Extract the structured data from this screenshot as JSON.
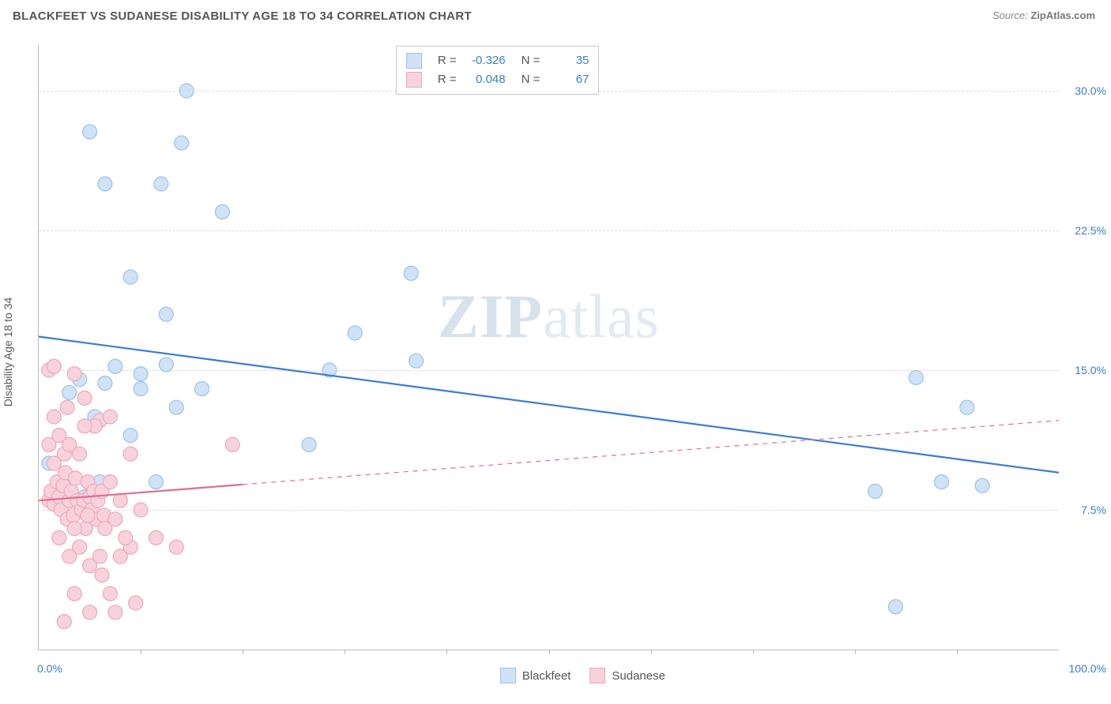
{
  "title": "BLACKFEET VS SUDANESE DISABILITY AGE 18 TO 34 CORRELATION CHART",
  "source_label": "Source:",
  "source_name": "ZipAtlas.com",
  "ylabel": "Disability Age 18 to 34",
  "watermark_strong": "ZIP",
  "watermark_light": "atlas",
  "chart": {
    "type": "scatter",
    "background_color": "#ffffff",
    "grid_color": "#dcdcdc",
    "axis_color": "#bbbbbb",
    "label_color": "#3a7cd6",
    "text_color": "#555555",
    "marker_radius": 9,
    "marker_stroke_width": 1.2,
    "trend_line_width_solid": 2.2,
    "trend_line_width_dashed": 1.2,
    "xlim": [
      0,
      100
    ],
    "ylim": [
      0,
      32.5
    ],
    "y_ticks": [
      7.5,
      15.0,
      22.5,
      30.0
    ],
    "y_tick_labels": [
      "7.5%",
      "15.0%",
      "22.5%",
      "30.0%"
    ],
    "x_minor_ticks": [
      10,
      20,
      30,
      40,
      50,
      60,
      70,
      80,
      90
    ],
    "x_min_label": "0.0%",
    "x_max_label": "100.0%",
    "series": [
      {
        "name": "Blackfeet",
        "color_fill": "#cfe2f6",
        "color_stroke": "#9dc2e8",
        "line_color": "#3a7cd6",
        "line_style": "solid",
        "R": "-0.326",
        "N": "35",
        "trend": {
          "y_at_x0": 16.8,
          "y_at_x100": 9.5
        },
        "points": [
          [
            1.0,
            10.0
          ],
          [
            5.0,
            27.8
          ],
          [
            6.5,
            25.0
          ],
          [
            5.5,
            12.5
          ],
          [
            3.0,
            13.8
          ],
          [
            4.0,
            14.5
          ],
          [
            6.5,
            14.3
          ],
          [
            7.5,
            15.2
          ],
          [
            10.0,
            14.8
          ],
          [
            12.5,
            18.0
          ],
          [
            14.5,
            30.0
          ],
          [
            14.0,
            27.2
          ],
          [
            12.0,
            25.0
          ],
          [
            10.0,
            14.0
          ],
          [
            9.0,
            20.0
          ],
          [
            12.5,
            15.3
          ],
          [
            13.5,
            13.0
          ],
          [
            16.0,
            14.0
          ],
          [
            18.0,
            23.5
          ],
          [
            26.5,
            11.0
          ],
          [
            28.5,
            15.0
          ],
          [
            31.0,
            17.0
          ],
          [
            36.5,
            20.2
          ],
          [
            37.0,
            15.5
          ],
          [
            6.0,
            9.0
          ],
          [
            9.0,
            11.5
          ],
          [
            11.5,
            9.0
          ],
          [
            82.0,
            8.5
          ],
          [
            84.0,
            2.3
          ],
          [
            86.0,
            14.6
          ],
          [
            88.5,
            9.0
          ],
          [
            91.0,
            13.0
          ],
          [
            92.5,
            8.8
          ],
          [
            2.5,
            8.2
          ],
          [
            4.5,
            8.2
          ]
        ]
      },
      {
        "name": "Sudanese",
        "color_fill": "#f7d2dc",
        "color_stroke": "#eda7bb",
        "line_color": "#e06d8f",
        "line_style": "dashed_after_data",
        "solid_segment_x_end": 20,
        "R": "0.048",
        "N": "67",
        "trend": {
          "y_at_x0": 8.0,
          "y_at_x100": 12.3
        },
        "points": [
          [
            1.0,
            8.0
          ],
          [
            1.2,
            8.5
          ],
          [
            1.5,
            7.8
          ],
          [
            1.8,
            9.0
          ],
          [
            2.0,
            8.2
          ],
          [
            2.2,
            7.5
          ],
          [
            2.4,
            8.8
          ],
          [
            2.6,
            9.5
          ],
          [
            2.8,
            7.0
          ],
          [
            3.0,
            8.0
          ],
          [
            3.2,
            8.5
          ],
          [
            3.4,
            7.2
          ],
          [
            3.6,
            9.2
          ],
          [
            3.8,
            8.0
          ],
          [
            4.0,
            10.5
          ],
          [
            4.2,
            7.5
          ],
          [
            4.4,
            8.0
          ],
          [
            4.6,
            6.5
          ],
          [
            4.8,
            9.0
          ],
          [
            5.0,
            8.2
          ],
          [
            5.2,
            7.5
          ],
          [
            5.4,
            8.5
          ],
          [
            5.6,
            7.0
          ],
          [
            5.8,
            8.0
          ],
          [
            6.0,
            12.3
          ],
          [
            6.2,
            8.5
          ],
          [
            6.4,
            7.2
          ],
          [
            1.0,
            11.0
          ],
          [
            1.5,
            12.5
          ],
          [
            2.0,
            11.5
          ],
          [
            2.5,
            10.5
          ],
          [
            3.0,
            11.0
          ],
          [
            1.0,
            15.0
          ],
          [
            1.5,
            15.2
          ],
          [
            3.5,
            14.8
          ],
          [
            4.5,
            13.5
          ],
          [
            2.0,
            6.0
          ],
          [
            3.0,
            5.0
          ],
          [
            4.0,
            5.5
          ],
          [
            5.0,
            4.5
          ],
          [
            6.0,
            5.0
          ],
          [
            3.5,
            3.0
          ],
          [
            5.0,
            2.0
          ],
          [
            7.0,
            3.0
          ],
          [
            2.5,
            1.5
          ],
          [
            7.5,
            2.0
          ],
          [
            7.0,
            9.0
          ],
          [
            8.0,
            8.0
          ],
          [
            8.0,
            5.0
          ],
          [
            9.0,
            5.5
          ],
          [
            9.5,
            2.5
          ],
          [
            6.5,
            6.5
          ],
          [
            7.5,
            7.0
          ],
          [
            10.0,
            7.5
          ],
          [
            8.5,
            6.0
          ],
          [
            7.0,
            12.5
          ],
          [
            5.5,
            12.0
          ],
          [
            4.5,
            12.0
          ],
          [
            11.5,
            6.0
          ],
          [
            9.0,
            10.5
          ],
          [
            13.5,
            5.5
          ],
          [
            19.0,
            11.0
          ],
          [
            1.5,
            10.0
          ],
          [
            2.8,
            13.0
          ],
          [
            3.5,
            6.5
          ],
          [
            4.8,
            7.2
          ],
          [
            6.2,
            4.0
          ]
        ]
      }
    ]
  },
  "legend_top": {
    "r_label": "R =",
    "n_label": "N ="
  },
  "legend_bottom": {
    "items": [
      "Blackfeet",
      "Sudanese"
    ]
  }
}
